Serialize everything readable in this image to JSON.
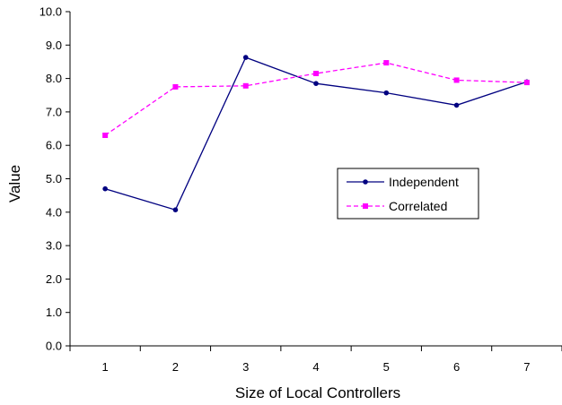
{
  "chart_data": {
    "type": "line",
    "title": "",
    "xlabel": "Size of Local Controllers",
    "ylabel": "Value",
    "categories": [
      "1",
      "2",
      "3",
      "4",
      "5",
      "6",
      "7"
    ],
    "ylim": [
      0,
      10
    ],
    "ytick_step": 1,
    "yticks": [
      "0.0",
      "1.0",
      "2.0",
      "3.0",
      "4.0",
      "5.0",
      "6.0",
      "7.0",
      "8.0",
      "9.0",
      "10.0"
    ],
    "grid": false,
    "legend": "inside-right",
    "series": [
      {
        "name": "Independent",
        "values": [
          4.7,
          4.07,
          8.63,
          7.85,
          7.57,
          7.2,
          7.9
        ],
        "color": "#000080",
        "line": "solid",
        "marker": "circle"
      },
      {
        "name": "Correlated",
        "values": [
          6.3,
          7.75,
          7.78,
          8.15,
          8.47,
          7.95,
          7.88
        ],
        "color": "#FF00FF",
        "line": "dashed",
        "marker": "square"
      }
    ]
  }
}
